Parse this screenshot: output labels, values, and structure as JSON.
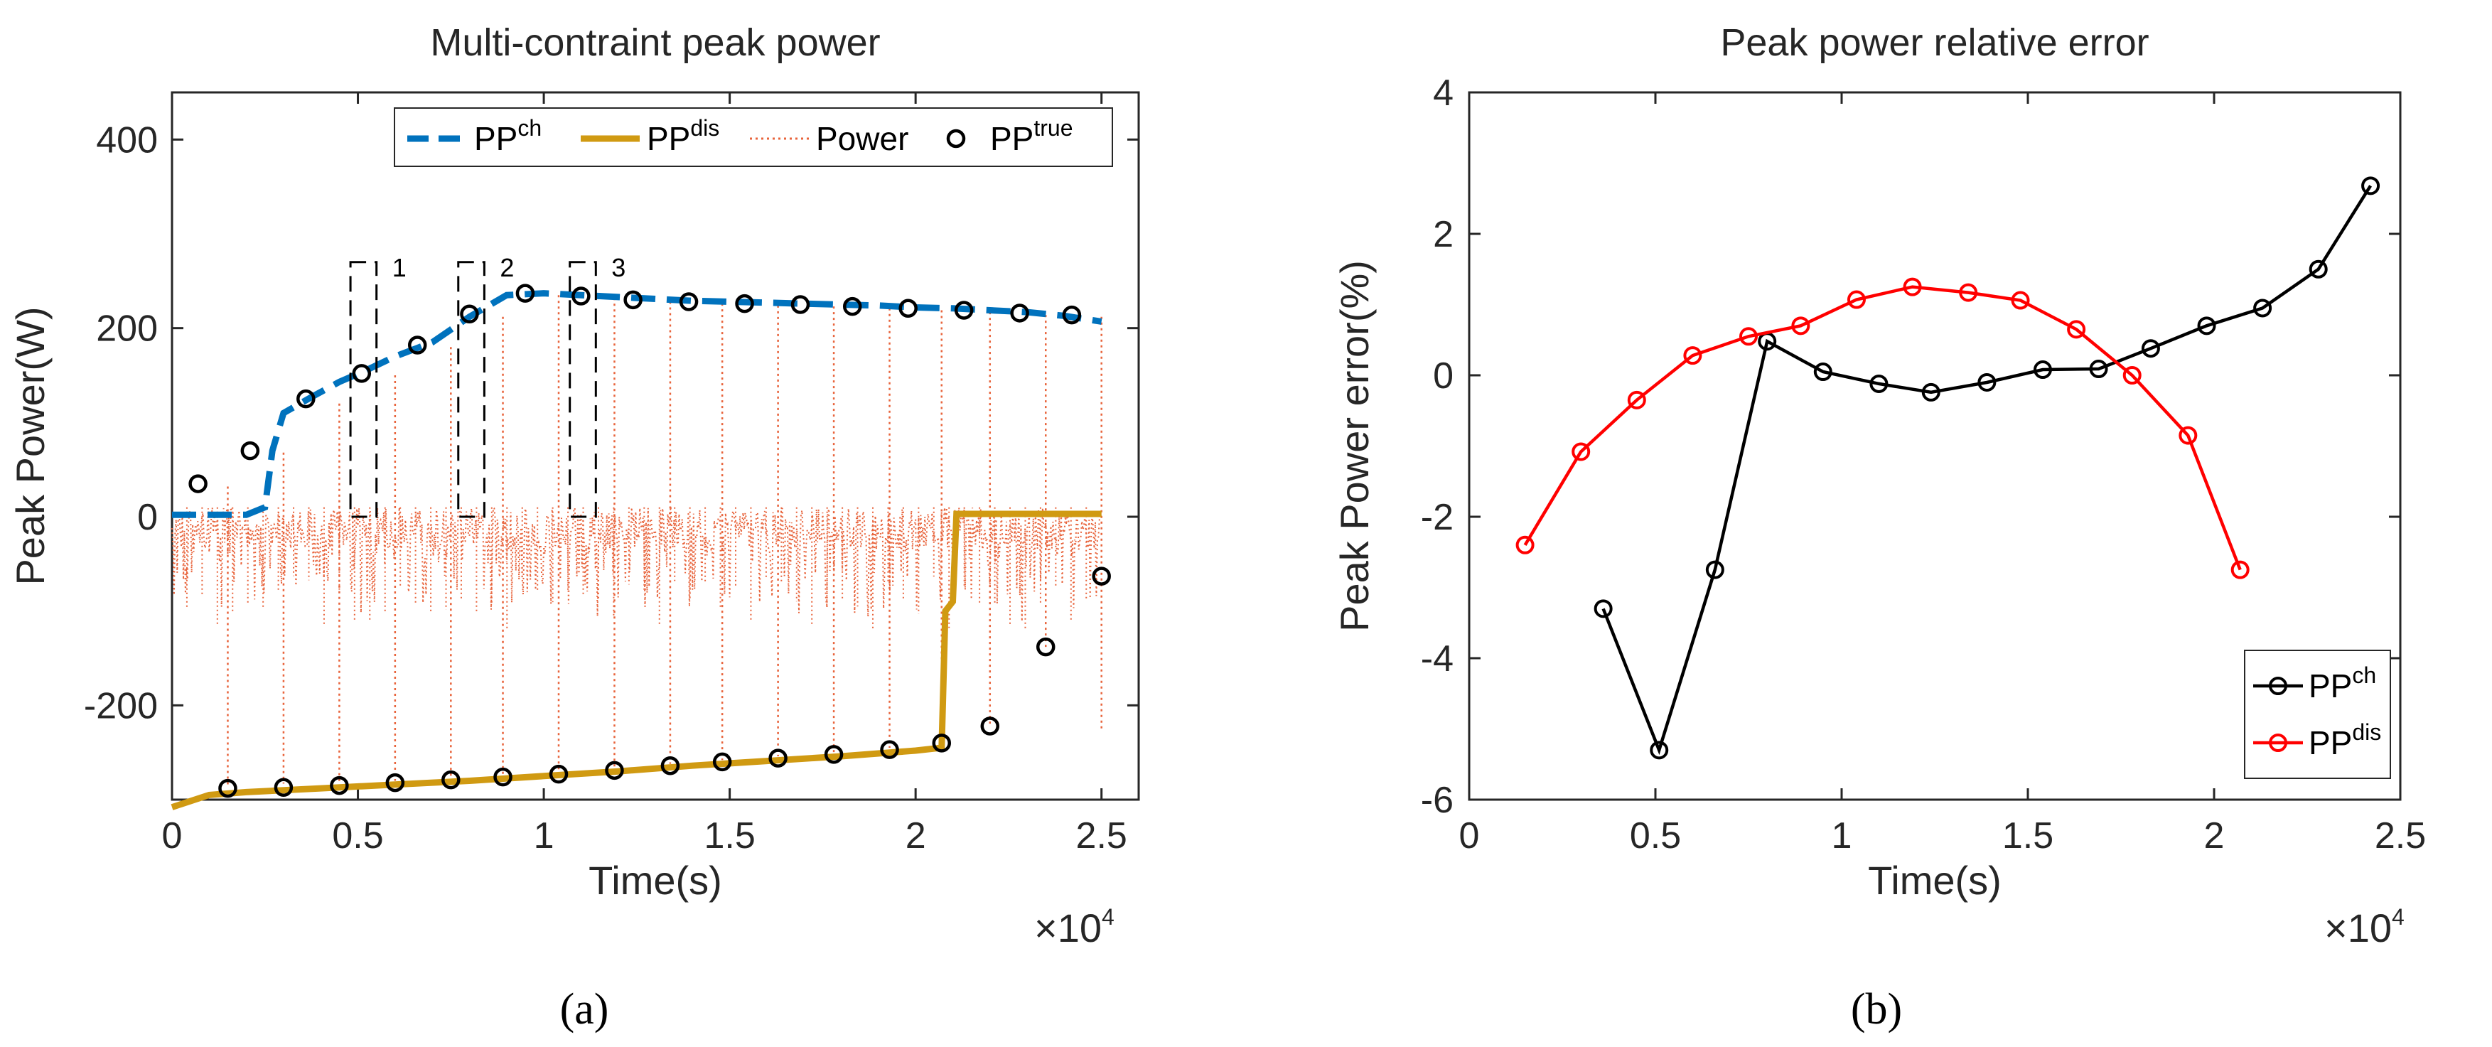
{
  "chart_data": [
    {
      "panel_label": "(a)",
      "type": "line",
      "title": "Multi-contraint peak power",
      "xlabel": "Time(s)",
      "ylabel": "Peak Power(W)",
      "x_multiplier": "×10",
      "x_multiplier_exp": "4",
      "xlim": [
        0,
        2.6
      ],
      "ylim": [
        -300,
        450
      ],
      "xticks": [
        "0",
        "0.5",
        "1",
        "1.5",
        "2",
        "2.5"
      ],
      "yticks": [
        "-200",
        "0",
        "200",
        "400"
      ],
      "legend_position": "top-right",
      "legend": [
        {
          "base": "PP",
          "sup": "ch",
          "style": "dashed",
          "color": "#0072BD"
        },
        {
          "base": "PP",
          "sup": "dis",
          "style": "solid",
          "color": "#D09A12"
        },
        {
          "base": "Power",
          "sup": "",
          "style": "dotted",
          "color": "#E8643C"
        },
        {
          "base": "PP",
          "sup": "true",
          "style": "marker",
          "color": "#000000"
        }
      ],
      "annotation_boxes": [
        {
          "label": "1",
          "x_range": [
            0.48,
            0.55
          ],
          "y_range": [
            0,
            270
          ]
        },
        {
          "label": "2",
          "x_range": [
            0.77,
            0.84
          ],
          "y_range": [
            0,
            270
          ]
        },
        {
          "label": "3",
          "x_range": [
            1.07,
            1.14
          ],
          "y_range": [
            0,
            270
          ]
        }
      ],
      "series": [
        {
          "name": "PP^ch",
          "color": "#0072BD",
          "x": [
            0,
            0.1,
            0.2,
            0.25,
            0.27,
            0.3,
            0.38,
            0.45,
            0.52,
            0.6,
            0.7,
            0.8,
            0.9,
            1.0,
            1.1,
            1.2,
            1.3,
            1.4,
            1.5,
            1.6,
            1.7,
            1.8,
            1.9,
            2.0,
            2.1,
            2.2,
            2.3,
            2.4,
            2.5
          ],
          "y": [
            2,
            2,
            2,
            10,
            70,
            110,
            128,
            143,
            155,
            170,
            185,
            212,
            235,
            237,
            235,
            233,
            231,
            229,
            228,
            227,
            226,
            225,
            224,
            222,
            221,
            219,
            217,
            213,
            207
          ]
        },
        {
          "name": "PP^dis",
          "color": "#D09A12",
          "x": [
            0,
            0.1,
            0.2,
            0.4,
            0.6,
            0.8,
            1.0,
            1.2,
            1.4,
            1.6,
            1.8,
            2.0,
            2.07,
            2.08,
            2.1,
            2.11,
            2.12,
            2.5
          ],
          "y": [
            -308,
            -295,
            -292,
            -288,
            -284,
            -280,
            -275,
            -270,
            -264,
            -259,
            -254,
            -248,
            -245,
            -100,
            -90,
            3,
            3,
            3
          ]
        },
        {
          "name": "PP^true",
          "color": "#000000",
          "style": "marker",
          "x": [
            0.07,
            0.21,
            0.36,
            0.51,
            0.66,
            0.8,
            0.95,
            1.1,
            1.24,
            1.39,
            1.54,
            1.69,
            1.83,
            1.98,
            2.13,
            2.28,
            2.42,
            0.15,
            0.3,
            0.45,
            0.6,
            0.75,
            0.89,
            1.04,
            1.19,
            1.34,
            1.48,
            1.63,
            1.78,
            1.93,
            2.07,
            2.2,
            2.35,
            2.5
          ],
          "y": [
            35,
            70,
            125,
            152,
            182,
            215,
            237,
            234,
            230,
            228,
            226,
            225,
            223,
            221,
            219,
            216,
            214,
            -288,
            -287,
            -285,
            -282,
            -279,
            -276,
            -273,
            -269,
            -264,
            -260,
            -256,
            -252,
            -247,
            -240,
            -222,
            -138,
            -63
          ]
        }
      ],
      "power_spikes_x": [
        0.15,
        0.3,
        0.45,
        0.6,
        0.75,
        0.89,
        1.04,
        1.19,
        1.34,
        1.48,
        1.63,
        1.78,
        1.93,
        2.07,
        2.2,
        2.35,
        2.5
      ],
      "power_spikes_top": [
        32,
        68,
        120,
        150,
        180,
        212,
        235,
        232,
        228,
        226,
        224,
        223,
        221,
        219,
        217,
        214,
        212
      ],
      "power_spikes_bottom": [
        -285,
        -283,
        -282,
        -280,
        -277,
        -274,
        -270,
        -266,
        -262,
        -258,
        -254,
        -250,
        -245,
        -240,
        -222,
        -138,
        -225
      ]
    },
    {
      "panel_label": "(b)",
      "type": "line",
      "title": "Peak power relative error",
      "xlabel": "Time(s)",
      "ylabel": "Peak Power error(%)",
      "x_multiplier": "×10",
      "x_multiplier_exp": "4",
      "xlim": [
        0,
        2.5
      ],
      "ylim": [
        -6,
        4
      ],
      "xticks": [
        "0",
        "0.5",
        "1",
        "1.5",
        "2",
        "2.5"
      ],
      "yticks": [
        "-6",
        "-4",
        "-2",
        "0",
        "2",
        "4"
      ],
      "legend_position": "bottom-right",
      "series": [
        {
          "base": "PP",
          "sup": "ch",
          "color": "#000000",
          "x": [
            0.36,
            0.51,
            0.66,
            0.8,
            0.95,
            1.1,
            1.24,
            1.39,
            1.54,
            1.69,
            1.83,
            1.98,
            2.13,
            2.28,
            2.42
          ],
          "y": [
            -3.3,
            -5.3,
            -2.75,
            0.48,
            0.05,
            -0.12,
            -0.24,
            -0.1,
            0.08,
            0.09,
            0.38,
            0.7,
            0.95,
            1.5,
            2.68
          ]
        },
        {
          "base": "PP",
          "sup": "dis",
          "color": "#FF0000",
          "x": [
            0.15,
            0.3,
            0.45,
            0.6,
            0.75,
            0.89,
            1.04,
            1.19,
            1.34,
            1.48,
            1.63,
            1.78,
            1.93,
            2.07
          ],
          "y": [
            -2.4,
            -1.08,
            -0.35,
            0.28,
            0.55,
            0.7,
            1.07,
            1.25,
            1.17,
            1.06,
            0.65,
            0.0,
            -0.85,
            -2.75
          ]
        }
      ]
    }
  ]
}
